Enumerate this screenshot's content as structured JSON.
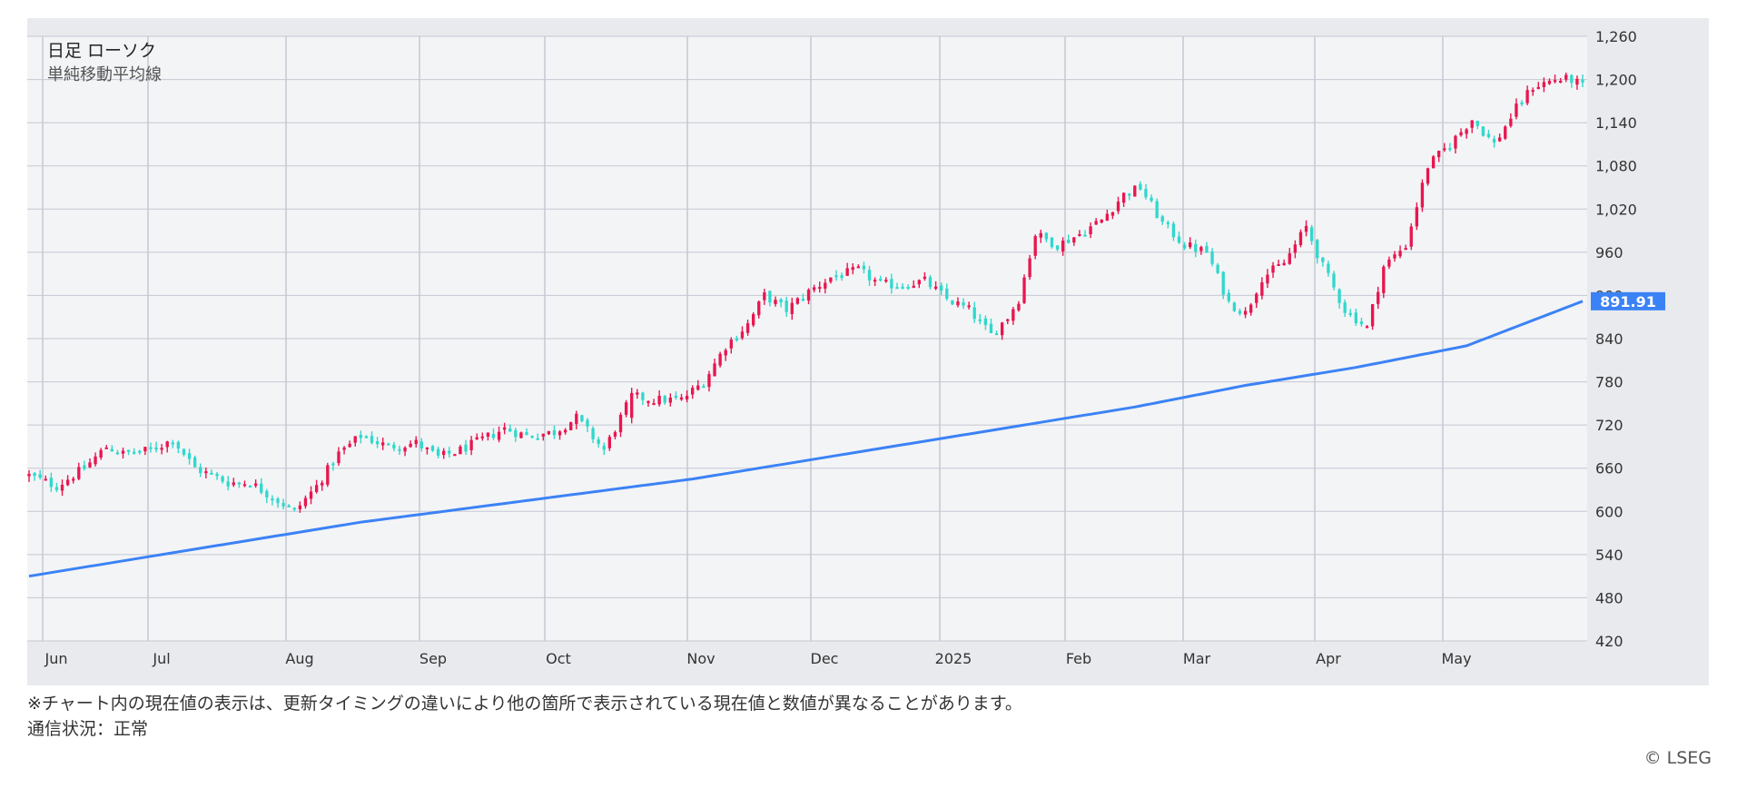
{
  "chart_data": {
    "type": "candlestick",
    "title": "日足 ローソク",
    "subtitle": "単純移動平均線",
    "x_ticks": [
      "Jun",
      "Jul",
      "Aug",
      "Sep",
      "Oct",
      "Nov",
      "Dec",
      "2025",
      "Feb",
      "Mar",
      "Apr",
      "May"
    ],
    "y_ticks": [
      "1,260",
      "1,200",
      "1,140",
      "1,080",
      "1,020",
      "960",
      "900",
      "840",
      "780",
      "720",
      "660",
      "600",
      "540",
      "480",
      "420"
    ],
    "ylim": [
      420,
      1260
    ],
    "sma_last_label": "891.91",
    "grid": true,
    "colors": {
      "up": "#e8164f",
      "down": "#30d8cc",
      "sma": "#3b82f6",
      "label_bg": "#3b82f6",
      "plot_bg": "#f3f4f6",
      "grid": "#c4c8d2"
    },
    "close_anchors": [
      [
        0,
        650
      ],
      [
        5,
        635
      ],
      [
        10,
        660
      ],
      [
        14,
        690
      ],
      [
        17,
        680
      ],
      [
        22,
        685
      ],
      [
        26,
        700
      ],
      [
        30,
        660
      ],
      [
        36,
        640
      ],
      [
        40,
        640
      ],
      [
        45,
        615
      ],
      [
        48,
        600
      ],
      [
        52,
        635
      ],
      [
        56,
        680
      ],
      [
        60,
        705
      ],
      [
        65,
        690
      ],
      [
        70,
        695
      ],
      [
        74,
        675
      ],
      [
        78,
        685
      ],
      [
        82,
        700
      ],
      [
        86,
        715
      ],
      [
        90,
        705
      ],
      [
        95,
        710
      ],
      [
        99,
        730
      ],
      [
        104,
        685
      ],
      [
        109,
        760
      ],
      [
        113,
        755
      ],
      [
        118,
        755
      ],
      [
        122,
        780
      ],
      [
        126,
        830
      ],
      [
        130,
        860
      ],
      [
        133,
        900
      ],
      [
        137,
        880
      ],
      [
        141,
        905
      ],
      [
        145,
        925
      ],
      [
        150,
        935
      ],
      [
        154,
        915
      ],
      [
        158,
        915
      ],
      [
        162,
        920
      ],
      [
        166,
        895
      ],
      [
        170,
        880
      ],
      [
        174,
        845
      ],
      [
        177,
        870
      ],
      [
        179,
        895
      ],
      [
        182,
        985
      ],
      [
        186,
        970
      ],
      [
        190,
        985
      ],
      [
        194,
        1005
      ],
      [
        198,
        1040
      ],
      [
        201,
        1050
      ],
      [
        205,
        1000
      ],
      [
        209,
        970
      ],
      [
        213,
        960
      ],
      [
        217,
        890
      ],
      [
        220,
        875
      ],
      [
        223,
        925
      ],
      [
        227,
        945
      ],
      [
        231,
        995
      ],
      [
        234,
        940
      ],
      [
        238,
        880
      ],
      [
        242,
        855
      ],
      [
        245,
        940
      ],
      [
        249,
        970
      ],
      [
        253,
        1080
      ],
      [
        257,
        1110
      ],
      [
        261,
        1145
      ],
      [
        265,
        1110
      ],
      [
        269,
        1160
      ],
      [
        272,
        1190
      ],
      [
        276,
        1200
      ],
      [
        279,
        1200
      ],
      [
        281,
        1190
      ]
    ],
    "sma_anchors": [
      [
        0,
        510
      ],
      [
        20,
        535
      ],
      [
        40,
        560
      ],
      [
        60,
        585
      ],
      [
        80,
        605
      ],
      [
        100,
        625
      ],
      [
        120,
        645
      ],
      [
        140,
        670
      ],
      [
        160,
        695
      ],
      [
        180,
        720
      ],
      [
        200,
        745
      ],
      [
        220,
        775
      ],
      [
        240,
        800
      ],
      [
        260,
        830
      ],
      [
        281,
        892
      ]
    ]
  },
  "footer": {
    "note": "※チャート内の現在値の表示は、更新タイミングの違いにより他の箇所で表示されている現在値と数値が異なることがあります。",
    "status": "通信状況：正常",
    "copyright": "© LSEG"
  }
}
